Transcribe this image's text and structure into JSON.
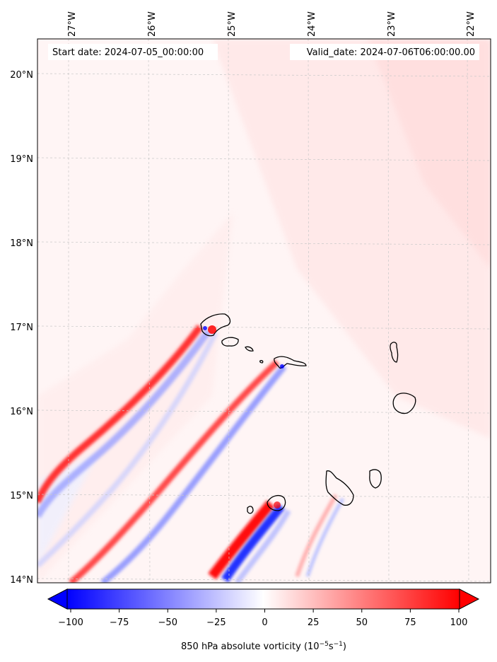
{
  "header": {
    "start_label": "Start date: 2024-07-05_00:00:00",
    "valid_label": "Valid_date: 2024-07-06T06:00:00.00"
  },
  "map": {
    "lon_labels": [
      "27°W",
      "26°W",
      "25°W",
      "24°W",
      "23°W",
      "22°W"
    ],
    "lat_labels": [
      "20°N",
      "19°N",
      "18°N",
      "17°N",
      "16°N",
      "15°N",
      "14°N"
    ],
    "field": "850 hPa absolute vorticity",
    "islands": [
      "Santo Antão",
      "São Vicente",
      "Santa Luzia",
      "São Nicolau",
      "Sal",
      "Boa Vista",
      "Maio",
      "Santiago",
      "Fogo",
      "Brava"
    ]
  },
  "colorbar": {
    "min": -100,
    "max": 100,
    "ticks": [
      "−100",
      "−75",
      "−50",
      "−25",
      "0",
      "25",
      "50",
      "75",
      "100"
    ],
    "label": "850 hPa absolute vorticity (10",
    "label_exp1": "−5",
    "label_mid": "s",
    "label_exp2": "−1",
    "label_end": ")",
    "low_color": "#0000ff",
    "mid_color": "#ffffff",
    "high_color": "#ff0000",
    "extend": "both"
  }
}
